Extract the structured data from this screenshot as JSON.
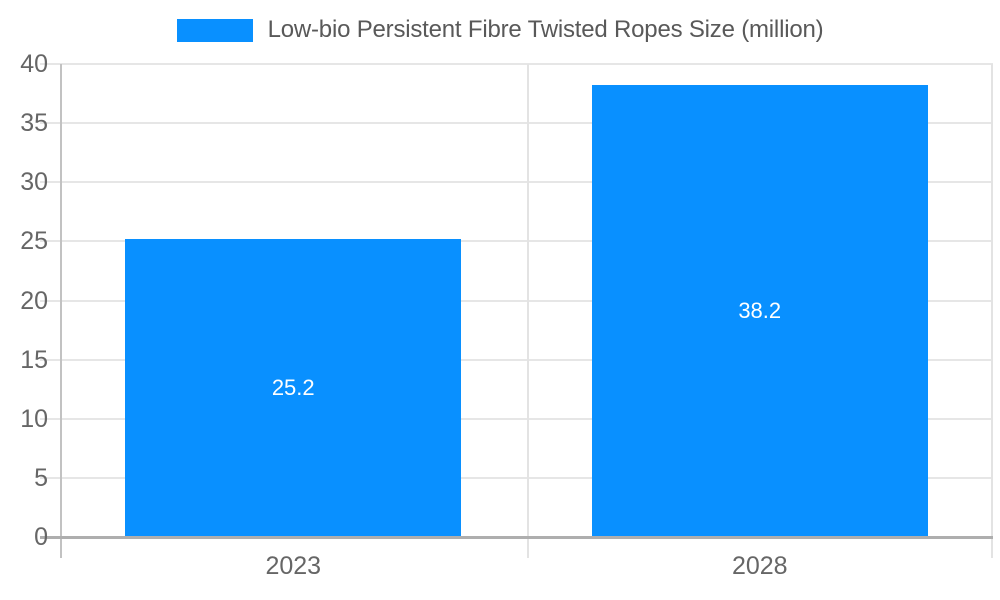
{
  "chart_data": {
    "type": "bar",
    "title": "",
    "legend": {
      "position": "top",
      "label": "Low-bio Persistent Fibre Twisted Ropes Size (million)"
    },
    "categories": [
      "2023",
      "2028"
    ],
    "series": [
      {
        "name": "Low-bio Persistent Fibre Twisted Ropes Size (million)",
        "values": [
          25.2,
          38.2
        ],
        "color": "#0990ff"
      }
    ],
    "data_labels": [
      "25.2",
      "38.2"
    ],
    "xlabel": "",
    "ylabel": "",
    "ylim": [
      0,
      40
    ],
    "ytick_step": 5,
    "yticks": [
      "0",
      "5",
      "10",
      "15",
      "20",
      "25",
      "30",
      "35",
      "40"
    ],
    "grid": true,
    "bar_band_ratio": 0.72,
    "colors": {
      "bar": "#0990ff",
      "gridline": "#e6e6e6",
      "axis_line": "#aeaeae",
      "y_axis_line": "#c2c2c2",
      "separator_line": "#e3e3e3",
      "tick_text": "#666666",
      "legend_text": "#595959",
      "value_label_text": "#ffffff",
      "background": "#ffffff"
    }
  }
}
